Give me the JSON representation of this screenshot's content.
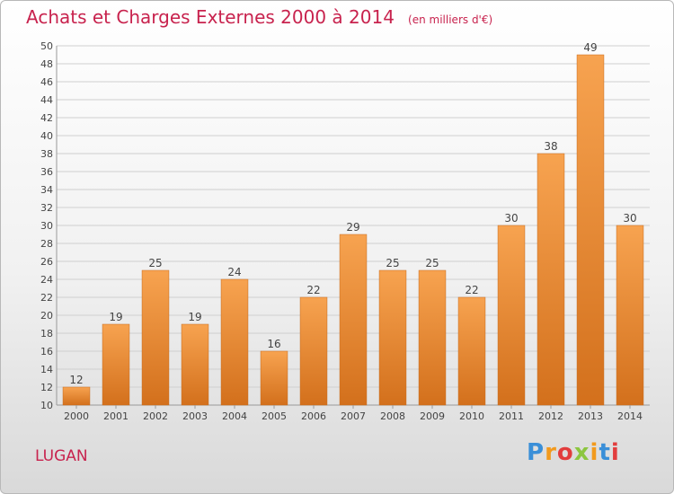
{
  "header": {
    "title": "Achats et Charges Externes 2000 à 2014",
    "unit": "(en milliers d'€)"
  },
  "footer": {
    "place": "LUGAN",
    "logo_text": "Proxiti",
    "logo_colors": [
      "#3a8fd8",
      "#f29a1d",
      "#e23d3d",
      "#8cc63f",
      "#f29a1d",
      "#3a8fd8",
      "#e23d3d"
    ]
  },
  "colors": {
    "title": "#c8234e",
    "bar_top": "#f7a350",
    "bar_bottom": "#d3701c",
    "grid": "#cfcfcf",
    "axis_text": "#444444"
  },
  "chart_data": {
    "type": "bar",
    "categories": [
      "2000",
      "2001",
      "2002",
      "2003",
      "2004",
      "2005",
      "2006",
      "2007",
      "2008",
      "2009",
      "2010",
      "2011",
      "2012",
      "2013",
      "2014"
    ],
    "values": [
      12,
      19,
      25,
      19,
      24,
      16,
      22,
      29,
      25,
      25,
      22,
      30,
      38,
      49,
      30
    ],
    "ylim": [
      10,
      50
    ],
    "yticks": [
      10,
      12,
      14,
      16,
      18,
      20,
      22,
      24,
      26,
      28,
      30,
      32,
      34,
      36,
      38,
      40,
      42,
      44,
      46,
      48,
      50
    ],
    "grid": true,
    "title": "Achats et Charges Externes 2000 à 2014",
    "xlabel": "",
    "ylabel": ""
  }
}
